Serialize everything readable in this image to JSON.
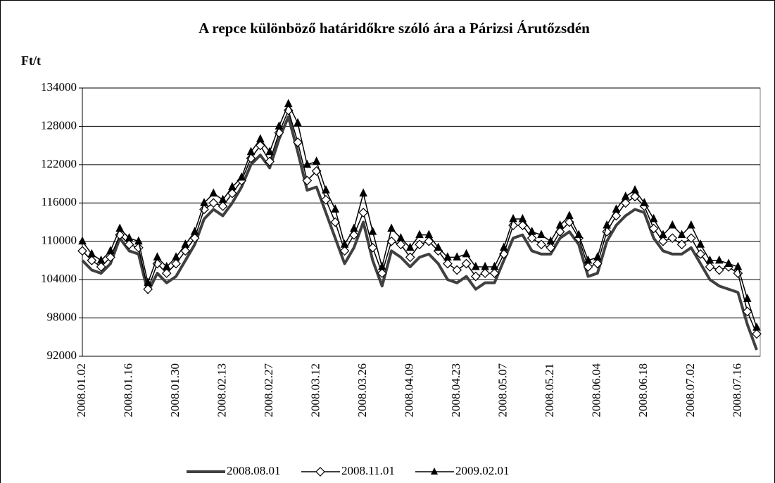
{
  "chart_data": {
    "type": "line",
    "title": "A repce különböző határidőkre szóló ára a Párizsi Árutőzsdén",
    "y_label": "Ft/t",
    "categories": [
      "2008.01.02",
      null,
      null,
      null,
      null,
      "2008.01.16",
      null,
      null,
      null,
      null,
      "2008.01.30",
      null,
      null,
      null,
      null,
      "2008.02.13",
      null,
      null,
      null,
      null,
      "2008.02.27",
      null,
      null,
      null,
      null,
      "2008.03.12",
      null,
      null,
      null,
      null,
      "2008.03.26",
      null,
      null,
      null,
      null,
      "2008.04.09",
      null,
      null,
      null,
      null,
      "2008.04.23",
      null,
      null,
      null,
      null,
      "2008.05.07",
      null,
      null,
      null,
      null,
      "2008.05.21",
      null,
      null,
      null,
      null,
      "2008.06.04",
      null,
      null,
      null,
      null,
      "2008.06.18",
      null,
      null,
      null,
      null,
      "2008.07.02",
      null,
      null,
      null,
      null,
      "2008.07.16",
      null,
      null
    ],
    "series": [
      {
        "name": "2008.08.01",
        "color": "#404040",
        "marker": "none",
        "values": [
          107000,
          105500,
          105000,
          106500,
          110500,
          108500,
          108000,
          102000,
          105000,
          103500,
          104500,
          107000,
          109500,
          113500,
          115000,
          114000,
          116000,
          118500,
          122000,
          123500,
          121500,
          126000,
          129500,
          124000,
          118000,
          118500,
          114500,
          110500,
          106500,
          109000,
          113000,
          107000,
          103000,
          108500,
          107500,
          106000,
          107500,
          108000,
          106500,
          104000,
          103500,
          104500,
          102500,
          103500,
          103500,
          107000,
          110500,
          111000,
          108500,
          108000,
          108000,
          110500,
          111500,
          109500,
          104500,
          105000,
          110000,
          112500,
          114000,
          115000,
          114500,
          110500,
          108500,
          108000,
          108000,
          109000,
          106500,
          104000,
          103000,
          102500,
          102000,
          97000,
          93000
        ]
      },
      {
        "name": "2008.11.01",
        "color": "#000000",
        "marker": "diamond",
        "values": [
          108500,
          107000,
          106000,
          107500,
          111000,
          109500,
          109000,
          102500,
          106500,
          105000,
          106500,
          108500,
          110500,
          115000,
          116000,
          115500,
          117500,
          119500,
          123000,
          125000,
          122500,
          127000,
          130500,
          125500,
          119500,
          121000,
          116500,
          113000,
          108500,
          111000,
          114500,
          109000,
          105000,
          110000,
          109500,
          107500,
          109500,
          110000,
          108500,
          106500,
          105500,
          106500,
          104500,
          105000,
          105000,
          108000,
          112500,
          112500,
          110500,
          109500,
          109000,
          111500,
          113000,
          110500,
          106000,
          106500,
          111500,
          114000,
          116000,
          117000,
          115500,
          112000,
          110000,
          110500,
          109500,
          110500,
          108000,
          106000,
          105500,
          106000,
          105000,
          99000,
          95500
        ]
      },
      {
        "name": "2009.02.01",
        "color": "#000000",
        "marker": "triangle",
        "values": [
          110000,
          108000,
          107000,
          108500,
          112000,
          110500,
          110000,
          103500,
          107500,
          106000,
          107500,
          109500,
          111500,
          116000,
          117500,
          116500,
          118500,
          120000,
          124000,
          126000,
          124000,
          128000,
          131500,
          128500,
          122000,
          122500,
          118000,
          115000,
          109500,
          112000,
          117500,
          111500,
          106000,
          112000,
          110500,
          109000,
          111000,
          111000,
          109000,
          107500,
          107500,
          108000,
          106000,
          106000,
          106000,
          109000,
          113500,
          113500,
          111500,
          111000,
          110000,
          112500,
          114000,
          111000,
          107000,
          107500,
          112500,
          115000,
          117000,
          118000,
          116000,
          113500,
          111000,
          112500,
          111000,
          112500,
          109500,
          107000,
          107000,
          106500,
          106000,
          101000,
          96500
        ]
      }
    ],
    "ylim": [
      92000,
      134000
    ],
    "yticks": [
      92000,
      98000,
      104000,
      110000,
      116000,
      122000,
      128000,
      134000
    ],
    "grid": true,
    "legend": "bottom"
  }
}
